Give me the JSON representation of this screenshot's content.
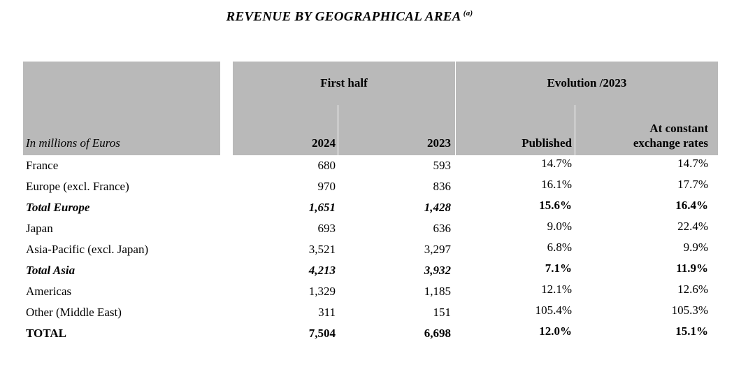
{
  "title": {
    "text": "REVENUE BY GEOGRAPHICAL AREA",
    "footnote": "(a)"
  },
  "table": {
    "header_bg": "#b9b9b9",
    "unit_label": "In millions of Euros",
    "groups": {
      "first_half": "First half",
      "evolution": "Evolution /2023"
    },
    "columns": {
      "y2024": "2024",
      "y2023": "2023",
      "published": "Published",
      "constant": "At constant exchange rates"
    },
    "rows": [
      {
        "label": "France",
        "v2024": "680",
        "v2023": "593",
        "published": "14.7%",
        "constant": "14.7%",
        "emphasis": "normal"
      },
      {
        "label": "Europe (excl. France)",
        "v2024": "970",
        "v2023": "836",
        "published": "16.1%",
        "constant": "17.7%",
        "emphasis": "normal"
      },
      {
        "label": "Total Europe",
        "v2024": "1,651",
        "v2023": "1,428",
        "published": "15.6%",
        "constant": "16.4%",
        "emphasis": "subtotal"
      },
      {
        "label": "Japan",
        "v2024": "693",
        "v2023": "636",
        "published": "9.0%",
        "constant": "22.4%",
        "emphasis": "normal"
      },
      {
        "label": "Asia-Pacific (excl. Japan)",
        "v2024": "3,521",
        "v2023": "3,297",
        "published": "6.8%",
        "constant": "9.9%",
        "emphasis": "normal"
      },
      {
        "label": "Total Asia",
        "v2024": "4,213",
        "v2023": "3,932",
        "published": "7.1%",
        "constant": "11.9%",
        "emphasis": "subtotal"
      },
      {
        "label": "Americas",
        "v2024": "1,329",
        "v2023": "1,185",
        "published": "12.1%",
        "constant": "12.6%",
        "emphasis": "normal"
      },
      {
        "label": "Other (Middle East)",
        "v2024": "311",
        "v2023": "151",
        "published": "105.4%",
        "constant": "105.3%",
        "emphasis": "normal"
      },
      {
        "label": "TOTAL",
        "v2024": "7,504",
        "v2023": "6,698",
        "published": "12.0%",
        "constant": "15.1%",
        "emphasis": "total"
      }
    ]
  }
}
